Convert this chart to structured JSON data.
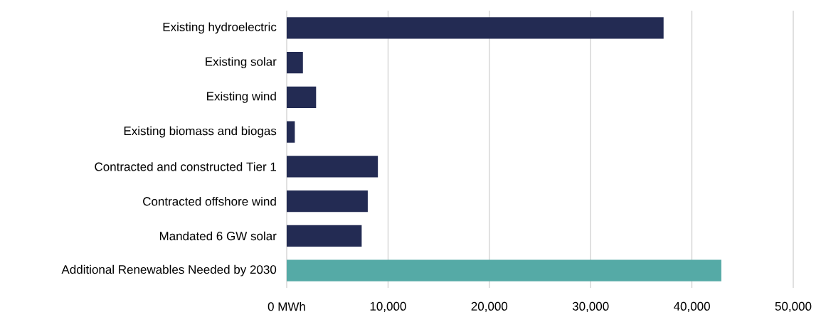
{
  "chart_data": {
    "type": "bar",
    "orientation": "horizontal",
    "categories": [
      "Existing hydroelectric",
      "Existing solar",
      "Existing wind",
      "Existing biomass and biogas",
      "Contracted and constructed Tier 1",
      "Contracted offshore wind",
      "Mandated 6 GW solar",
      "Additional Renewables Needed by 2030"
    ],
    "values": [
      37200,
      1600,
      2900,
      800,
      9000,
      8000,
      7400,
      42900
    ],
    "colors": [
      "#232b53",
      "#232b53",
      "#232b53",
      "#232b53",
      "#232b53",
      "#232b53",
      "#232b53",
      "#55aaa6"
    ],
    "xlim": [
      0,
      50000
    ],
    "xticks": [
      {
        "value": 0,
        "label": "0 MWh"
      },
      {
        "value": 10000,
        "label": "10,000"
      },
      {
        "value": 20000,
        "label": "20,000"
      },
      {
        "value": 30000,
        "label": "30,000"
      },
      {
        "value": 40000,
        "label": "40,000"
      },
      {
        "value": 50000,
        "label": "50,000"
      }
    ],
    "grid": "x"
  }
}
